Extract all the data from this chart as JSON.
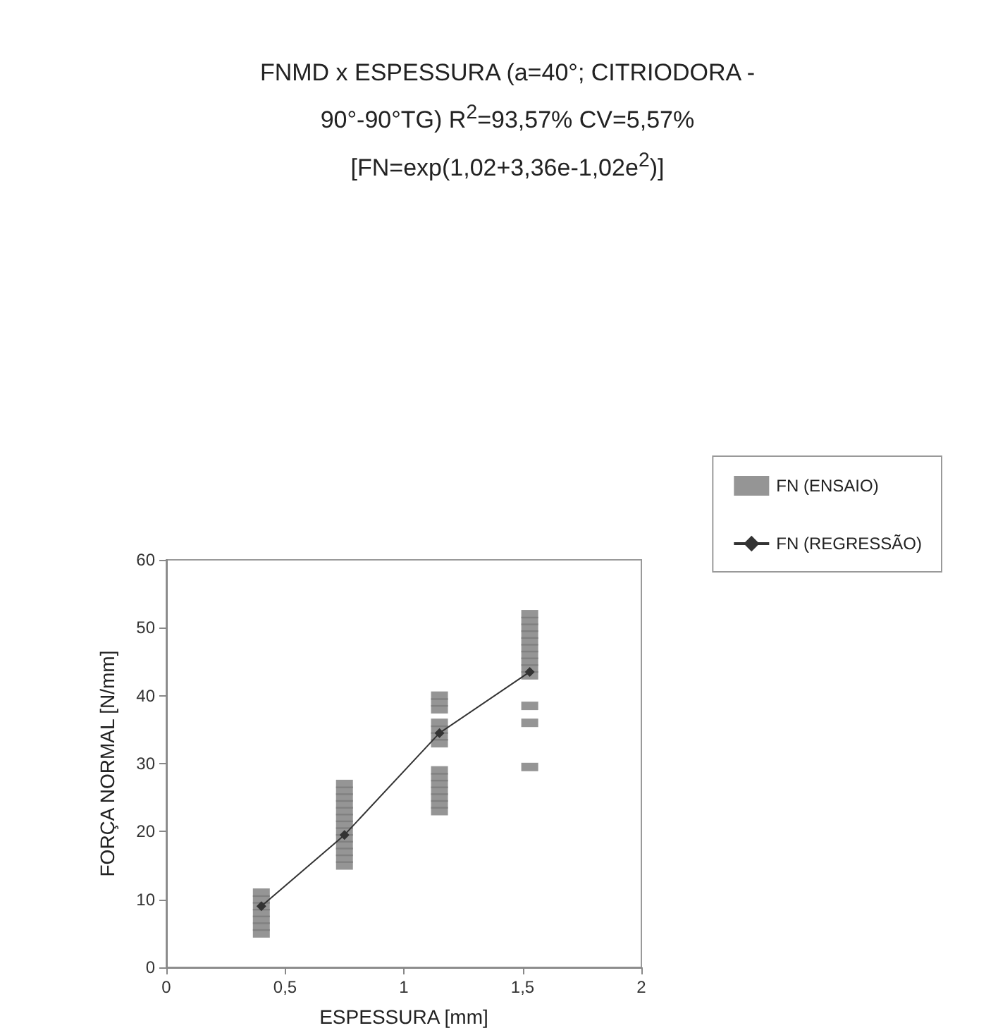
{
  "chart_data": {
    "type": "scatter",
    "title": "FNMD x ESPESSURA (a=40°; CITRIODORA - 90°-90°TG) R$^{2}$=93,57% CV=5,57% [FN=exp(1,02+3,36e-1,02e$^{2}$)]",
    "xlabel": "ESPESSURA [mm]",
    "ylabel": "FORÇA NORMAL [N/mm]",
    "series": [
      {
        "name": "FN (ENSAIO)",
        "marker": "square",
        "color": "#7a7a7a",
        "x": [
          0.4,
          0.4,
          0.4,
          0.4,
          0.4,
          0.4,
          0.4,
          0.75,
          0.75,
          0.75,
          0.75,
          0.75,
          0.75,
          0.75,
          0.75,
          0.75,
          0.75,
          0.75,
          0.75,
          0.75,
          1.15,
          1.15,
          1.15,
          1.15,
          1.15,
          1.15,
          1.15,
          1.15,
          1.15,
          1.15,
          1.15,
          1.15,
          1.15,
          1.15,
          1.53,
          1.53,
          1.53,
          1.53,
          1.53,
          1.53,
          1.53,
          1.53,
          1.53,
          1.53,
          1.53,
          1.53,
          1.53
        ],
        "values": [
          5,
          6,
          7,
          8,
          9,
          10,
          11,
          15,
          16,
          17,
          18,
          19,
          20,
          21,
          22,
          23,
          24,
          25,
          26,
          27,
          23,
          24,
          25,
          26,
          27,
          28,
          29,
          33,
          34,
          35,
          36,
          38,
          39,
          40,
          29.5,
          36,
          38.5,
          43,
          44,
          45,
          46,
          47,
          48,
          49,
          50,
          51,
          52
        ]
      },
      {
        "name": "FN (REGRESSÃO)",
        "type": "line",
        "marker": "diamond",
        "line_style": "solid",
        "color": "#333333",
        "x": [
          0.4,
          0.75,
          1.15,
          1.53
        ],
        "values": [
          9,
          19.5,
          34.5,
          43.5
        ]
      }
    ],
    "xlim": [
      0,
      2
    ],
    "xticks": [
      0,
      {
        "value": 0.5,
        "label": "0,5"
      },
      1,
      {
        "value": 1.5,
        "label": "1,5"
      },
      2
    ],
    "ylim": [
      0,
      60
    ],
    "yticks": [
      0,
      10,
      20,
      30,
      40,
      50,
      60
    ],
    "grid": false,
    "legend": "right"
  }
}
